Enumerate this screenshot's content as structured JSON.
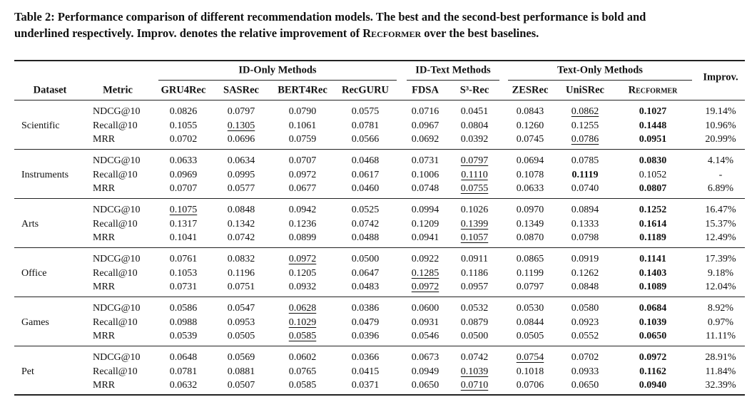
{
  "caption": {
    "line1": "Table 2: Performance comparison of different recommendation models. The best and the second-best performance is bold and",
    "line2_lead": "underlined respectively. Improv. denotes the relative improvement of ",
    "name": "Recformer",
    "line2_tail": " over the best baselines."
  },
  "table": {
    "header": {
      "dataset": "Dataset",
      "metric": "Metric",
      "improv": "Improv.",
      "groups": [
        {
          "label": "ID-Only Methods",
          "columns": [
            "GRU4Rec",
            "SASRec",
            "BERT4Rec",
            "RecGURU"
          ]
        },
        {
          "label": "ID-Text Methods",
          "columns": [
            "FDSA",
            "S³-Rec"
          ]
        },
        {
          "label": "Text-Only Methods",
          "columns": [
            "ZESRec",
            "UniSRec",
            "Recformer"
          ]
        }
      ]
    },
    "sections": [
      {
        "dataset": "Scientific",
        "rows": [
          {
            "metric": "NDCG@10",
            "values": [
              "0.0826",
              "0.0797",
              "0.0790",
              "0.0575",
              "0.0716",
              "0.0451",
              "0.0843",
              "0.0862",
              "0.1027"
            ],
            "improv": "19.14%",
            "best": 8,
            "second": 7
          },
          {
            "metric": "Recall@10",
            "values": [
              "0.1055",
              "0.1305",
              "0.1061",
              "0.0781",
              "0.0967",
              "0.0804",
              "0.1260",
              "0.1255",
              "0.1448"
            ],
            "improv": "10.96%",
            "best": 8,
            "second": 1
          },
          {
            "metric": "MRR",
            "values": [
              "0.0702",
              "0.0696",
              "0.0759",
              "0.0566",
              "0.0692",
              "0.0392",
              "0.0745",
              "0.0786",
              "0.0951"
            ],
            "improv": "20.99%",
            "best": 8,
            "second": 7
          }
        ]
      },
      {
        "dataset": "Instruments",
        "rows": [
          {
            "metric": "NDCG@10",
            "values": [
              "0.0633",
              "0.0634",
              "0.0707",
              "0.0468",
              "0.0731",
              "0.0797",
              "0.0694",
              "0.0785",
              "0.0830"
            ],
            "improv": "4.14%",
            "best": 8,
            "second": 5
          },
          {
            "metric": "Recall@10",
            "values": [
              "0.0969",
              "0.0995",
              "0.0972",
              "0.0617",
              "0.1006",
              "0.1110",
              "0.1078",
              "0.1119",
              "0.1052"
            ],
            "improv": "-",
            "best": 7,
            "second": 5
          },
          {
            "metric": "MRR",
            "values": [
              "0.0707",
              "0.0577",
              "0.0677",
              "0.0460",
              "0.0748",
              "0.0755",
              "0.0633",
              "0.0740",
              "0.0807"
            ],
            "improv": "6.89%",
            "best": 8,
            "second": 5
          }
        ]
      },
      {
        "dataset": "Arts",
        "rows": [
          {
            "metric": "NDCG@10",
            "values": [
              "0.1075",
              "0.0848",
              "0.0942",
              "0.0525",
              "0.0994",
              "0.1026",
              "0.0970",
              "0.0894",
              "0.1252"
            ],
            "improv": "16.47%",
            "best": 8,
            "second": 0
          },
          {
            "metric": "Recall@10",
            "values": [
              "0.1317",
              "0.1342",
              "0.1236",
              "0.0742",
              "0.1209",
              "0.1399",
              "0.1349",
              "0.1333",
              "0.1614"
            ],
            "improv": "15.37%",
            "best": 8,
            "second": 5
          },
          {
            "metric": "MRR",
            "values": [
              "0.1041",
              "0.0742",
              "0.0899",
              "0.0488",
              "0.0941",
              "0.1057",
              "0.0870",
              "0.0798",
              "0.1189"
            ],
            "improv": "12.49%",
            "best": 8,
            "second": 5
          }
        ]
      },
      {
        "dataset": "Office",
        "rows": [
          {
            "metric": "NDCG@10",
            "values": [
              "0.0761",
              "0.0832",
              "0.0972",
              "0.0500",
              "0.0922",
              "0.0911",
              "0.0865",
              "0.0919",
              "0.1141"
            ],
            "improv": "17.39%",
            "best": 8,
            "second": 2
          },
          {
            "metric": "Recall@10",
            "values": [
              "0.1053",
              "0.1196",
              "0.1205",
              "0.0647",
              "0.1285",
              "0.1186",
              "0.1199",
              "0.1262",
              "0.1403"
            ],
            "improv": "9.18%",
            "best": 8,
            "second": 4
          },
          {
            "metric": "MRR",
            "values": [
              "0.0731",
              "0.0751",
              "0.0932",
              "0.0483",
              "0.0972",
              "0.0957",
              "0.0797",
              "0.0848",
              "0.1089"
            ],
            "improv": "12.04%",
            "best": 8,
            "second": 4
          }
        ]
      },
      {
        "dataset": "Games",
        "rows": [
          {
            "metric": "NDCG@10",
            "values": [
              "0.0586",
              "0.0547",
              "0.0628",
              "0.0386",
              "0.0600",
              "0.0532",
              "0.0530",
              "0.0580",
              "0.0684"
            ],
            "improv": "8.92%",
            "best": 8,
            "second": 2
          },
          {
            "metric": "Recall@10",
            "values": [
              "0.0988",
              "0.0953",
              "0.1029",
              "0.0479",
              "0.0931",
              "0.0879",
              "0.0844",
              "0.0923",
              "0.1039"
            ],
            "improv": "0.97%",
            "best": 8,
            "second": 2
          },
          {
            "metric": "MRR",
            "values": [
              "0.0539",
              "0.0505",
              "0.0585",
              "0.0396",
              "0.0546",
              "0.0500",
              "0.0505",
              "0.0552",
              "0.0650"
            ],
            "improv": "11.11%",
            "best": 8,
            "second": 2
          }
        ]
      },
      {
        "dataset": "Pet",
        "rows": [
          {
            "metric": "NDCG@10",
            "values": [
              "0.0648",
              "0.0569",
              "0.0602",
              "0.0366",
              "0.0673",
              "0.0742",
              "0.0754",
              "0.0702",
              "0.0972"
            ],
            "improv": "28.91%",
            "best": 8,
            "second": 6
          },
          {
            "metric": "Recall@10",
            "values": [
              "0.0781",
              "0.0881",
              "0.0765",
              "0.0415",
              "0.0949",
              "0.1039",
              "0.1018",
              "0.0933",
              "0.1162"
            ],
            "improv": "11.84%",
            "best": 8,
            "second": 5
          },
          {
            "metric": "MRR",
            "values": [
              "0.0632",
              "0.0507",
              "0.0585",
              "0.0371",
              "0.0650",
              "0.0710",
              "0.0706",
              "0.0650",
              "0.0940"
            ],
            "improv": "32.39%",
            "best": 8,
            "second": 5
          }
        ]
      }
    ]
  }
}
